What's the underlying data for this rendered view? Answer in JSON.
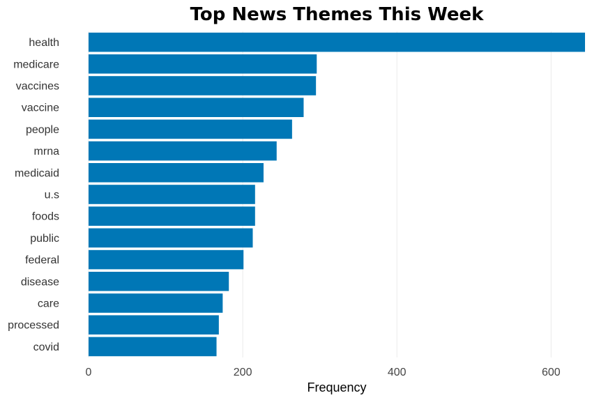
{
  "chart_data": {
    "type": "bar",
    "orientation": "horizontal",
    "title": "Top News Themes This Week",
    "xlabel": "Frequency",
    "ylabel": "",
    "categories": [
      "health",
      "medicare",
      "vaccines",
      "vaccine",
      "people",
      "mrna",
      "medicaid",
      "u.s",
      "foods",
      "public",
      "federal",
      "disease",
      "care",
      "processed",
      "covid"
    ],
    "values": [
      644,
      296,
      295,
      279,
      264,
      244,
      227,
      216,
      216,
      213,
      201,
      182,
      174,
      169,
      166
    ],
    "xlim": [
      0,
      644
    ],
    "xticks": [
      0,
      200,
      400,
      600
    ],
    "grid": "vertical",
    "legend": "none",
    "bar_color": "#0077b6"
  }
}
